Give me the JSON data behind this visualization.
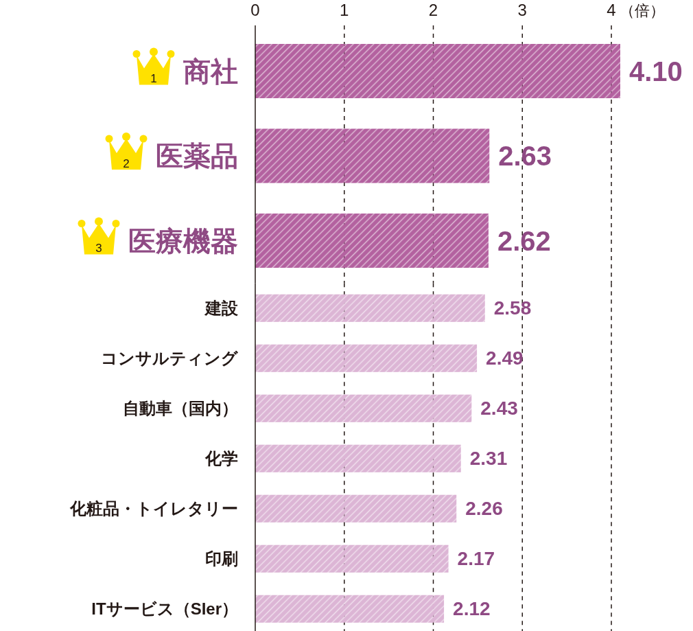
{
  "chart_data": [
    {
      "type": "bar",
      "orientation": "horizontal",
      "xlabel": "（倍）",
      "categories": [
        "商社",
        "医薬品",
        "医療機器"
      ],
      "values": [
        4.1,
        2.63,
        2.62
      ],
      "value_labels": [
        "4.10",
        "2.63",
        "2.62"
      ],
      "colors": [
        "#b3619f",
        "#b3619f",
        "#b3619f"
      ],
      "xlim": [
        0,
        4.1
      ],
      "xticks": [
        0,
        1,
        2,
        3,
        4
      ],
      "grid": "x",
      "annotations": [
        "1",
        "2",
        "3"
      ]
    },
    {
      "type": "bar",
      "orientation": "horizontal",
      "categories": [
        "建設",
        "コンサルティング",
        "自動車（国内）",
        "化学",
        "化粧品・トイレタリー",
        "印刷",
        "ITサービス（SIer）"
      ],
      "values": [
        2.58,
        2.49,
        2.43,
        2.31,
        2.26,
        2.17,
        2.12
      ],
      "value_labels": [
        "2.58",
        "2.49",
        "2.43",
        "2.31",
        "2.26",
        "2.17",
        "2.12"
      ],
      "colors": [
        "#dcb5d5",
        "#dcb5d5",
        "#dcb5d5",
        "#dcb5d5",
        "#dcb5d5",
        "#dcb5d5",
        "#dcb5d5"
      ],
      "xlim": [
        0,
        4.9
      ],
      "xticks": [
        0,
        1,
        2,
        3,
        4
      ],
      "tick_labels": "y",
      "grid": "x"
    }
  ]
}
